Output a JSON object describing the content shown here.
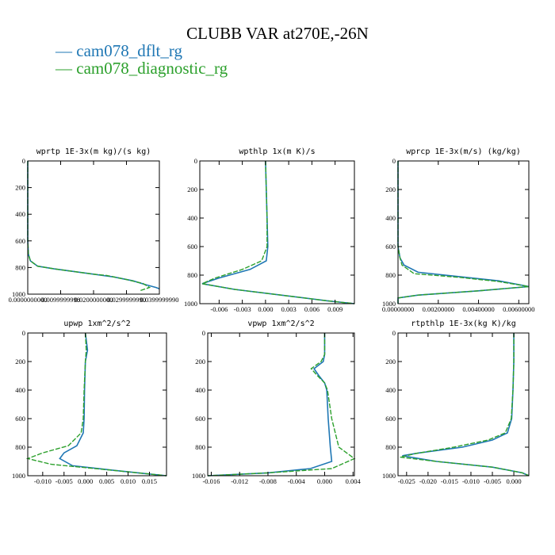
{
  "figure": {
    "title": "CLUBB VAR at270E,-26N",
    "legend": [
      {
        "label": "cam078_dflt_rg",
        "color": "#1f77b4"
      },
      {
        "label": "cam078_diagnostic_rg",
        "color": "#2ca02c"
      }
    ]
  },
  "chart_data": [
    {
      "type": "line",
      "title": "wprtp  1E-3x(m kg)/(s kg)",
      "xlim": [
        0.0,
        0.04
      ],
      "ylim": [
        1000,
        0
      ],
      "yticks": [
        "0",
        "200",
        "400",
        "600",
        "800",
        "1000"
      ],
      "yticks_values": [
        0,
        200,
        400,
        600,
        800,
        1000
      ],
      "xticks": [
        "0.0000000000",
        "0.0099999998",
        "0.0200000000",
        "0.0299999990",
        "0.0399999990"
      ],
      "xticks_values": [
        0.0,
        0.01,
        0.02,
        0.03,
        0.04
      ],
      "series": [
        {
          "name": "cam078_dflt_rg",
          "x": [
            0.0,
            0.0,
            0.0,
            0.0,
            0.0002,
            0.0008,
            0.003,
            0.008,
            0.014,
            0.02,
            0.026,
            0.032,
            0.036,
            0.039,
            0.04
          ],
          "y": [
            0,
            200,
            400,
            600,
            700,
            750,
            790,
            810,
            830,
            850,
            870,
            900,
            930,
            950,
            960
          ]
        },
        {
          "name": "cam078_diagnostic_rg",
          "x": [
            0.0,
            0.0,
            0.0,
            0.0,
            0.0002,
            0.0008,
            0.003,
            0.008,
            0.014,
            0.02,
            0.024,
            0.03,
            0.035,
            0.037,
            0.034
          ],
          "y": [
            0,
            200,
            400,
            600,
            700,
            750,
            790,
            810,
            830,
            850,
            860,
            890,
            920,
            950,
            975
          ]
        }
      ]
    },
    {
      "type": "line",
      "title": "wpthlp  1x(m K)/s",
      "xlim": [
        -0.0085,
        0.0115
      ],
      "ylim": [
        1000,
        0
      ],
      "yticks": [
        "0",
        "200",
        "400",
        "600",
        "800",
        "1000"
      ],
      "yticks_values": [
        0,
        200,
        400,
        600,
        800,
        1000
      ],
      "xticks": [
        "-0.006",
        "-0.003",
        "0.000",
        "0.003",
        "0.006",
        "0.009"
      ],
      "xticks_values": [
        -0.006,
        -0.003,
        0.0,
        0.003,
        0.006,
        0.009
      ],
      "series": [
        {
          "name": "cam078_dflt_rg",
          "x": [
            0.0,
            0.0001,
            0.0002,
            0.0003,
            0.0001,
            -0.002,
            -0.006,
            -0.0082,
            -0.004,
            0.002,
            0.008,
            0.0115
          ],
          "y": [
            0,
            200,
            400,
            600,
            700,
            760,
            820,
            860,
            900,
            940,
            980,
            1000
          ]
        },
        {
          "name": "cam078_diagnostic_rg",
          "x": [
            0.0,
            0.0001,
            0.0002,
            0.0002,
            -0.0005,
            -0.003,
            -0.0065,
            -0.0082,
            -0.004,
            0.002,
            0.008,
            0.0115
          ],
          "y": [
            0,
            200,
            400,
            600,
            700,
            760,
            820,
            860,
            900,
            940,
            980,
            1000
          ]
        }
      ]
    },
    {
      "type": "line",
      "title": "wprcp  1E-3x(m/s) (kg/kg)",
      "xlim": [
        0.0,
        0.0065
      ],
      "ylim": [
        1000,
        0
      ],
      "yticks": [
        "0",
        "200",
        "400",
        "600",
        "800",
        "1000"
      ],
      "yticks_values": [
        0,
        200,
        400,
        600,
        800,
        1000
      ],
      "xticks": [
        "0.00000000",
        "0.00200000",
        "0.00400000",
        "0.00600000"
      ],
      "xticks_values": [
        0.0,
        0.002,
        0.004,
        0.006
      ],
      "series": [
        {
          "name": "cam078_dflt_rg",
          "x": [
            0.0,
            0.0,
            0.0,
            0.0,
            0.0001,
            0.0003,
            0.001,
            0.003,
            0.005,
            0.0065,
            0.004,
            0.001,
            0.0,
            0.0
          ],
          "y": [
            0,
            200,
            400,
            600,
            680,
            730,
            780,
            810,
            840,
            880,
            910,
            940,
            960,
            1000
          ]
        },
        {
          "name": "cam078_diagnostic_rg",
          "x": [
            0.0,
            0.0,
            0.0,
            0.0,
            0.0001,
            0.0002,
            0.0008,
            0.003,
            0.005,
            0.0065,
            0.004,
            0.001,
            0.0,
            0.0
          ],
          "y": [
            0,
            200,
            400,
            600,
            680,
            730,
            790,
            815,
            845,
            880,
            910,
            940,
            960,
            1000
          ]
        }
      ]
    },
    {
      "type": "line",
      "title": "upwp  1xm^2/s^2",
      "xlim": [
        -0.0135,
        0.019
      ],
      "ylim": [
        1000,
        0
      ],
      "yticks": [
        "0",
        "200",
        "400",
        "600",
        "800",
        "1000"
      ],
      "yticks_values": [
        0,
        200,
        400,
        600,
        800,
        1000
      ],
      "xticks": [
        "-0.010",
        "-0.005",
        "0.000",
        "0.005",
        "0.010",
        "0.015"
      ],
      "xticks_values": [
        -0.01,
        -0.005,
        0.0,
        0.005,
        0.01,
        0.015
      ],
      "series": [
        {
          "name": "cam078_dflt_rg",
          "x": [
            0.0,
            0.0005,
            0.0,
            -0.0002,
            -0.0003,
            -0.0005,
            -0.002,
            -0.005,
            -0.006,
            -0.003,
            0.006,
            0.014,
            0.019
          ],
          "y": [
            0,
            120,
            200,
            400,
            600,
            700,
            790,
            840,
            880,
            930,
            960,
            985,
            1000
          ]
        },
        {
          "name": "cam078_diagnostic_rg",
          "x": [
            0.0,
            0.0002,
            0.0,
            -0.0003,
            -0.0005,
            -0.001,
            -0.004,
            -0.01,
            -0.0135,
            -0.008,
            0.004,
            0.014,
            0.019
          ],
          "y": [
            0,
            120,
            200,
            400,
            600,
            700,
            790,
            840,
            880,
            920,
            955,
            985,
            1000
          ]
        }
      ]
    },
    {
      "type": "line",
      "title": "vpwp  1xm^2/s^2",
      "xlim": [
        -0.0165,
        0.0042
      ],
      "ylim": [
        1000,
        0
      ],
      "yticks": [
        "0",
        "200",
        "400",
        "600",
        "800",
        "1000"
      ],
      "yticks_values": [
        0,
        200,
        400,
        600,
        800,
        1000
      ],
      "xticks": [
        "-0.016",
        "-0.012",
        "-0.008",
        "-0.004",
        "0.000",
        "0.004"
      ],
      "xticks_values": [
        -0.016,
        -0.012,
        -0.008,
        -0.004,
        0.0,
        0.004
      ],
      "series": [
        {
          "name": "cam078_dflt_rg",
          "x": [
            0.0,
            0.0,
            -0.0002,
            -0.0015,
            -0.0008,
            0.0,
            0.0003,
            0.0005,
            0.0008,
            0.001,
            -0.002,
            -0.008,
            -0.0165
          ],
          "y": [
            0,
            150,
            200,
            250,
            300,
            350,
            400,
            600,
            800,
            900,
            950,
            980,
            1000
          ]
        },
        {
          "name": "cam078_diagnostic_rg",
          "x": [
            0.0,
            0.0,
            -0.0005,
            -0.0019,
            -0.001,
            0.0,
            0.0004,
            0.001,
            0.002,
            0.0042,
            0.001,
            -0.008,
            -0.0165
          ],
          "y": [
            0,
            150,
            200,
            250,
            300,
            350,
            400,
            600,
            800,
            880,
            950,
            980,
            1000
          ]
        }
      ]
    },
    {
      "type": "line",
      "title": "rtpthlp  1E-3x(kg K)/kg",
      "xlim": [
        -0.027,
        0.0035
      ],
      "ylim": [
        1000,
        0
      ],
      "yticks": [
        "0",
        "200",
        "400",
        "600",
        "800",
        "1000"
      ],
      "yticks_values": [
        0,
        200,
        400,
        600,
        800,
        1000
      ],
      "xticks": [
        "-0.025",
        "-0.020",
        "-0.015",
        "-0.010",
        "-0.005",
        "0.000"
      ],
      "xticks_values": [
        -0.025,
        -0.02,
        -0.015,
        -0.01,
        -0.005,
        0.0
      ],
      "series": [
        {
          "name": "cam078_dflt_rg",
          "x": [
            0.0,
            0.0,
            -0.0002,
            -0.0005,
            -0.0015,
            -0.005,
            -0.012,
            -0.022,
            -0.026,
            -0.018,
            -0.005,
            0.002,
            0.0035
          ],
          "y": [
            0,
            200,
            400,
            600,
            700,
            750,
            800,
            840,
            860,
            900,
            940,
            980,
            1000
          ]
        },
        {
          "name": "cam078_diagnostic_rg",
          "x": [
            0.0,
            0.0,
            -0.0002,
            -0.0006,
            -0.002,
            -0.006,
            -0.014,
            -0.023,
            -0.0265,
            -0.018,
            -0.005,
            0.002,
            0.0035
          ],
          "y": [
            0,
            200,
            400,
            600,
            700,
            750,
            800,
            845,
            870,
            900,
            940,
            980,
            1000
          ]
        }
      ]
    }
  ]
}
